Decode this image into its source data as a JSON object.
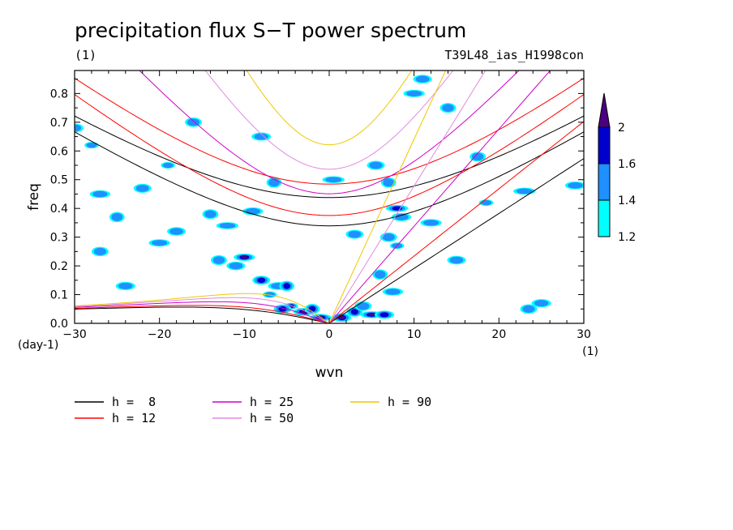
{
  "chart_data": {
    "type": "contour",
    "title": "precipitation flux S−T power spectrum",
    "subtitle_left": "(1)",
    "subtitle_right": "T39L48_ias_H1998con",
    "xlabel": "wvn",
    "ylabel": "freq",
    "x_unit": "(1)",
    "y_unit": "(day-1)",
    "xlim": [
      -30,
      30
    ],
    "ylim": [
      0,
      0.88
    ],
    "x_ticks": [
      -30,
      -20,
      -10,
      0,
      10,
      20,
      30
    ],
    "x_tick_labels": [
      "−30",
      "−20",
      "−10",
      "0",
      "10",
      "20",
      "30"
    ],
    "y_ticks": [
      0,
      0.1,
      0.2,
      0.3,
      0.4,
      0.5,
      0.6,
      0.7,
      0.8
    ],
    "y_tick_labels": [
      "0.0",
      "0.1",
      "0.2",
      "0.3",
      "0.4",
      "0.5",
      "0.6",
      "0.7",
      "0.8"
    ],
    "colorbar": {
      "levels": [
        1.2,
        1.4,
        1.6,
        2
      ],
      "level_labels": [
        "1.2",
        "1.4",
        "1.6",
        "2"
      ],
      "colors": [
        "#00ffff",
        "#1e90ff",
        "#0000cd",
        "#4b0082"
      ]
    },
    "dispersion_curves": [
      {
        "label": "h =  8",
        "h": 8,
        "color": "#000000"
      },
      {
        "label": "h = 12",
        "h": 12,
        "color": "#ff0000"
      },
      {
        "label": "h = 25",
        "h": 25,
        "color": "#d000c8"
      },
      {
        "label": "h = 50",
        "h": 50,
        "color": "#e08ae0"
      },
      {
        "label": "h = 90",
        "h": 90,
        "color": "#f0c800"
      }
    ],
    "blobs": [
      {
        "x": -4.5,
        "y": 0.06,
        "level": 3
      },
      {
        "x": -3.0,
        "y": 0.04,
        "level": 3
      },
      {
        "x": -5.5,
        "y": 0.05,
        "level": 2
      },
      {
        "x": -2.0,
        "y": 0.05,
        "level": 2
      },
      {
        "x": -1.0,
        "y": 0.02,
        "level": 3
      },
      {
        "x": 1.5,
        "y": 0.02,
        "level": 3
      },
      {
        "x": 3.0,
        "y": 0.04,
        "level": 2
      },
      {
        "x": 5.0,
        "y": 0.03,
        "level": 3
      },
      {
        "x": 6.5,
        "y": 0.03,
        "level": 2
      },
      {
        "x": 4.0,
        "y": 0.06,
        "level": 1
      },
      {
        "x": -7.0,
        "y": 0.1,
        "level": 1
      },
      {
        "x": -6.0,
        "y": 0.13,
        "level": 1
      },
      {
        "x": -8.0,
        "y": 0.15,
        "level": 2
      },
      {
        "x": -5.0,
        "y": 0.13,
        "level": 2
      },
      {
        "x": -10.0,
        "y": 0.23,
        "level": 3
      },
      {
        "x": -11.0,
        "y": 0.2,
        "level": 1
      },
      {
        "x": -13.0,
        "y": 0.22,
        "level": 1
      },
      {
        "x": 8.0,
        "y": 0.4,
        "level": 2
      },
      {
        "x": 8.5,
        "y": 0.37,
        "level": 1
      },
      {
        "x": 7.0,
        "y": 0.3,
        "level": 1
      },
      {
        "x": 8.0,
        "y": 0.27,
        "level": 1
      },
      {
        "x": 7.5,
        "y": 0.11,
        "level": 1
      },
      {
        "x": 5.5,
        "y": 0.55,
        "level": 1
      },
      {
        "x": 7.0,
        "y": 0.49,
        "level": 1
      },
      {
        "x": 10.0,
        "y": 0.8,
        "level": 1
      },
      {
        "x": 11.0,
        "y": 0.85,
        "level": 1
      },
      {
        "x": 14.0,
        "y": 0.75,
        "level": 1
      },
      {
        "x": 0.5,
        "y": 0.5,
        "level": 1
      },
      {
        "x": -8.0,
        "y": 0.65,
        "level": 1
      },
      {
        "x": -16.0,
        "y": 0.7,
        "level": 1
      },
      {
        "x": -28.0,
        "y": 0.62,
        "level": 1
      },
      {
        "x": -27.0,
        "y": 0.45,
        "level": 1
      },
      {
        "x": -22.0,
        "y": 0.47,
        "level": 1
      },
      {
        "x": -25.0,
        "y": 0.37,
        "level": 1
      },
      {
        "x": -20.0,
        "y": 0.28,
        "level": 1
      },
      {
        "x": -18.0,
        "y": 0.32,
        "level": 1
      },
      {
        "x": -14.0,
        "y": 0.38,
        "level": 1
      },
      {
        "x": -12.0,
        "y": 0.34,
        "level": 1
      },
      {
        "x": -24.0,
        "y": 0.13,
        "level": 1
      },
      {
        "x": -27.0,
        "y": 0.25,
        "level": 1
      },
      {
        "x": -19.0,
        "y": 0.55,
        "level": 1
      },
      {
        "x": -9.0,
        "y": 0.39,
        "level": 1
      },
      {
        "x": 3.0,
        "y": 0.31,
        "level": 1
      },
      {
        "x": 6.0,
        "y": 0.17,
        "level": 1
      },
      {
        "x": 12.0,
        "y": 0.35,
        "level": 1
      },
      {
        "x": 15.0,
        "y": 0.22,
        "level": 1
      },
      {
        "x": 17.5,
        "y": 0.58,
        "level": 1
      },
      {
        "x": 23.0,
        "y": 0.46,
        "level": 1
      },
      {
        "x": 25.0,
        "y": 0.07,
        "level": 1
      },
      {
        "x": 23.5,
        "y": 0.05,
        "level": 1
      },
      {
        "x": 18.5,
        "y": 0.42,
        "level": 1
      },
      {
        "x": 29.0,
        "y": 0.48,
        "level": 1
      },
      {
        "x": -30.0,
        "y": 0.68,
        "level": 1
      },
      {
        "x": -6.5,
        "y": 0.49,
        "level": 1
      }
    ]
  }
}
